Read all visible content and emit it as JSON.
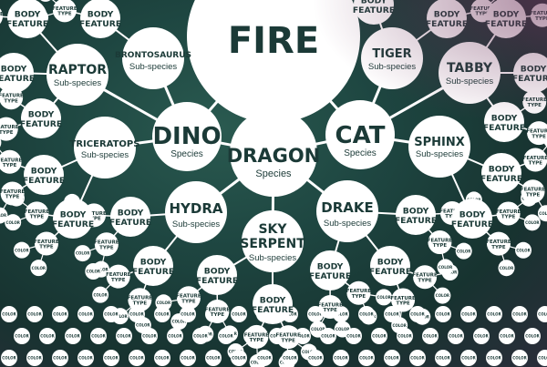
{
  "nodes": {
    "fire": {
      "title": "FIRE",
      "subtitle": ""
    },
    "dragon": {
      "title": "DRAGON",
      "subtitle": "Species"
    },
    "dino": {
      "title": "DINO",
      "subtitle": "Species"
    },
    "cat": {
      "title": "CAT",
      "subtitle": "Species"
    },
    "hydra": {
      "title": "HYDRA",
      "subtitle": "Sub-species"
    },
    "sky_serpent": {
      "title_line1": "SKY",
      "title_line2": "SERPENT",
      "subtitle": "Sub-species"
    },
    "drake": {
      "title": "DRAKE",
      "subtitle": "Sub-species"
    },
    "raptor": {
      "title": "RAPTOR",
      "subtitle": "Sub-species"
    },
    "brontosaurus": {
      "title": "BRONTOSAURUS",
      "subtitle": "Sub-species"
    },
    "triceratops": {
      "title": "TRICERATOPS",
      "subtitle": "Sub-species"
    },
    "tiger": {
      "title": "TIGER",
      "subtitle": "Sub-species"
    },
    "tabby": {
      "title": "TABBY",
      "subtitle": "Sub-species"
    },
    "sphinx": {
      "title": "SPHINX",
      "subtitle": "Sub-species"
    }
  },
  "labels": {
    "body_feature_line1": "BODY",
    "body_feature_line2": "FEATURE",
    "feature_type_line1": "FEATURE",
    "feature_type_line2": "TYPE",
    "color": "COLOR"
  },
  "colors": {
    "node_fill": "#ffffff",
    "text": "#1b3a37",
    "edge": "#ffffff",
    "background": "#1e4641"
  }
}
